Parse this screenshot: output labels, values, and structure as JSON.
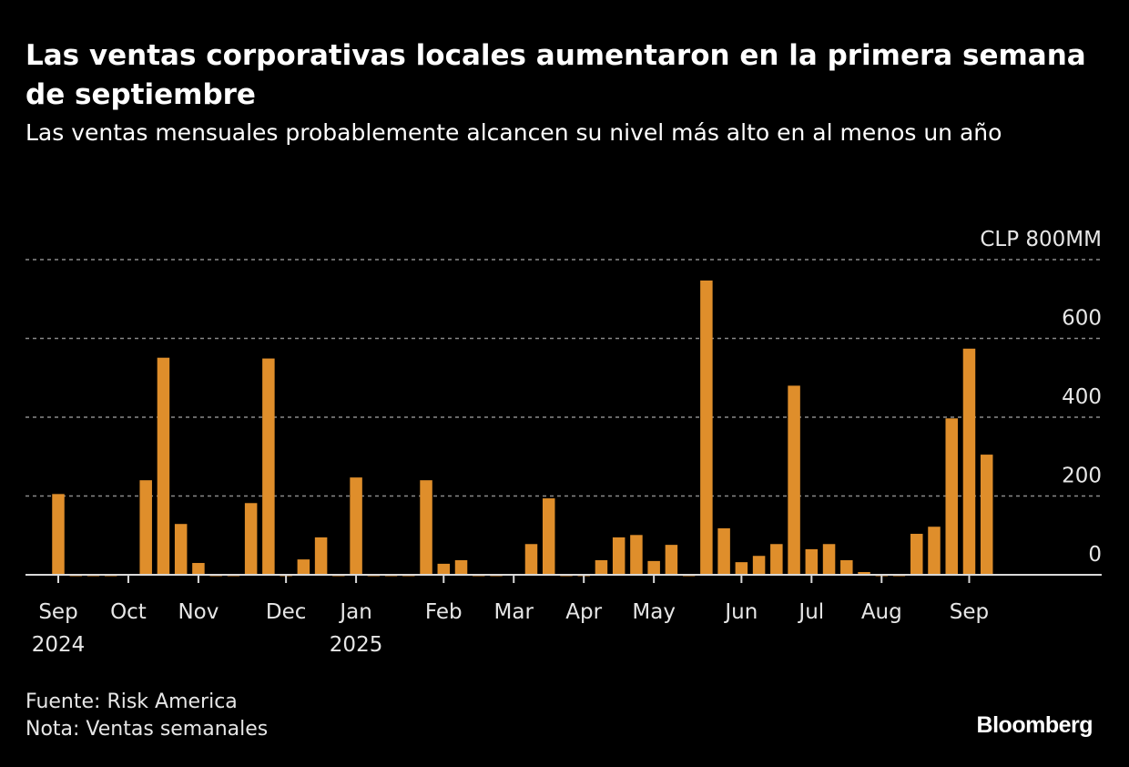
{
  "title": "Las ventas corporativas locales aumentaron en la primera semana de septiembre",
  "subtitle": "Las ventas mensuales probablemente alcancen su nivel más alto en al menos un año",
  "footer": {
    "source": "Fuente: Risk America",
    "note": "Nota: Ventas semanales",
    "logo": "Bloomberg"
  },
  "chart_data": {
    "type": "bar",
    "title": "",
    "xlabel": "",
    "ylabel": "",
    "unit_label": "CLP 800MM",
    "ylim": [
      0,
      800
    ],
    "y_ticks": [
      {
        "value": 0,
        "label": "0"
      },
      {
        "value": 200,
        "label": "200"
      },
      {
        "value": 400,
        "label": "400"
      },
      {
        "value": 600,
        "label": "600"
      },
      {
        "value": 800,
        "label": "CLP 800MM"
      }
    ],
    "grid": true,
    "x_ticks": [
      {
        "month": "Sep",
        "year": "2024"
      },
      {
        "month": "Oct",
        "year": ""
      },
      {
        "month": "Nov",
        "year": ""
      },
      {
        "month": "Dec",
        "year": ""
      },
      {
        "month": "Jan",
        "year": "2025"
      },
      {
        "month": "Feb",
        "year": ""
      },
      {
        "month": "Mar",
        "year": ""
      },
      {
        "month": "Apr",
        "year": ""
      },
      {
        "month": "May",
        "year": ""
      },
      {
        "month": "Jun",
        "year": ""
      },
      {
        "month": "Jul",
        "year": ""
      },
      {
        "month": "Aug",
        "year": ""
      },
      {
        "month": "Sep",
        "year": ""
      }
    ],
    "bar_color": "#df8e2b",
    "values": [
      205,
      -3,
      -3,
      -2,
      2,
      240,
      551,
      129,
      30,
      -3,
      -3,
      182,
      549,
      -3,
      39,
      95,
      -2,
      247,
      -3,
      -3,
      -3,
      240,
      28,
      37,
      -3,
      -3,
      2,
      78,
      194,
      -3,
      -3,
      37,
      95,
      101,
      35,
      76,
      -3,
      747,
      118,
      32,
      48,
      78,
      480,
      65,
      78,
      37,
      7,
      -3,
      -1,
      104,
      122,
      397,
      574,
      305
    ]
  }
}
